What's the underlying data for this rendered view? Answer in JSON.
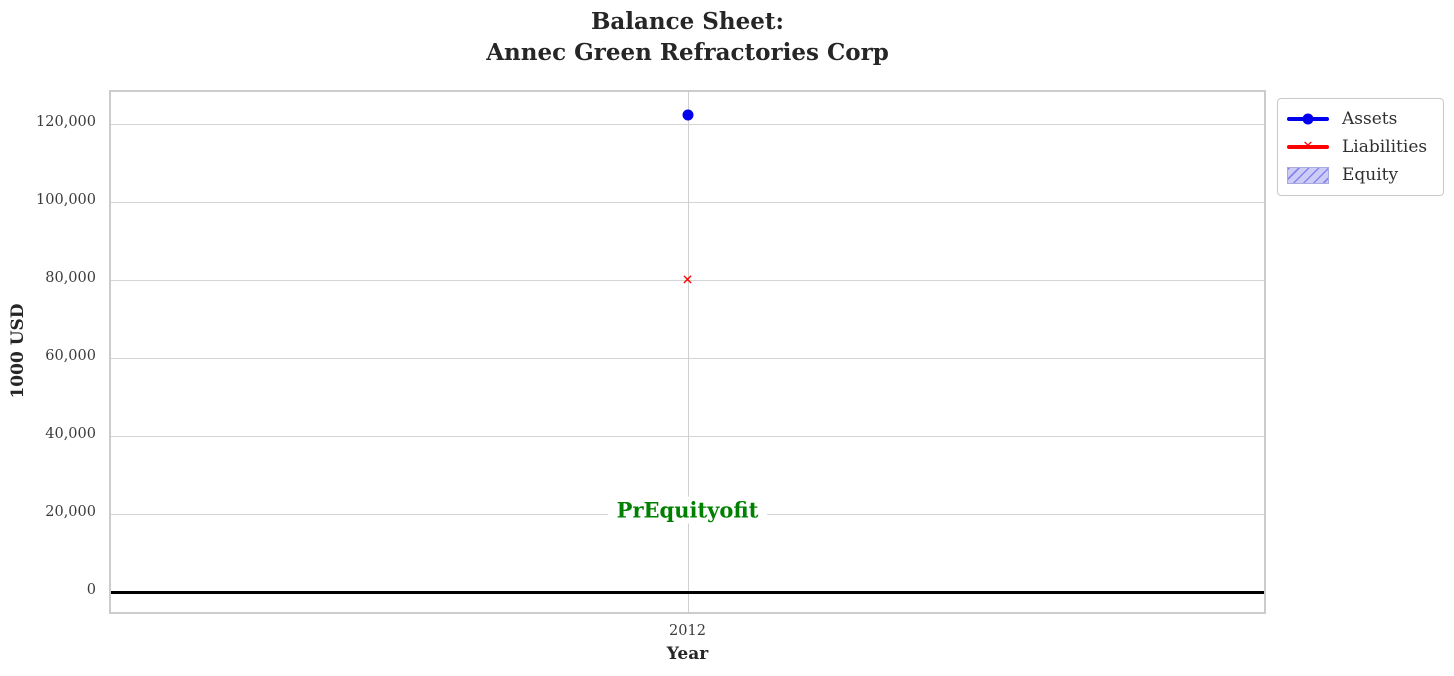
{
  "chart_data": {
    "type": "scatter",
    "title": "Balance Sheet:\nAnnec Green Refractories Corp",
    "xlabel": "Year",
    "ylabel": "1000 USD",
    "categories": [
      "2012"
    ],
    "x_tick_labels": [
      "2012"
    ],
    "series": [
      {
        "name": "Assets",
        "marker": "circle",
        "color": "#0000ee",
        "values": [
          122400
        ]
      },
      {
        "name": "Liabilities",
        "marker": "x",
        "color": "#ff0000",
        "values": [
          79800
        ]
      },
      {
        "name": "Equity",
        "marker": "hatched-patch",
        "color": "#ccccf7",
        "hatch_color": "#8585ec",
        "values": [
          null
        ]
      }
    ],
    "yticks": [
      0,
      20000,
      40000,
      60000,
      80000,
      100000,
      120000
    ],
    "ytick_labels": [
      "0",
      "20,000",
      "40,000",
      "60,000",
      "80,000",
      "100,000",
      "120,000"
    ],
    "ylim": [
      -6150,
      128250
    ],
    "grid": true,
    "zero_line_value": 0,
    "legend_position": "upper right, outside plot",
    "annotation": {
      "text": "PrEquityofit",
      "color": "#008000",
      "x": "2012",
      "y": 21000
    }
  },
  "legend": {
    "items": [
      "Assets",
      "Liabilities",
      "Equity"
    ]
  },
  "icons": {
    "x_marker_glyph": "✕"
  },
  "colors": {
    "grid": "#d4d4d4",
    "spine": "#cccccc",
    "zero_line": "#000000",
    "title_text": "#262626",
    "tick_text": "#3b3b3b"
  }
}
